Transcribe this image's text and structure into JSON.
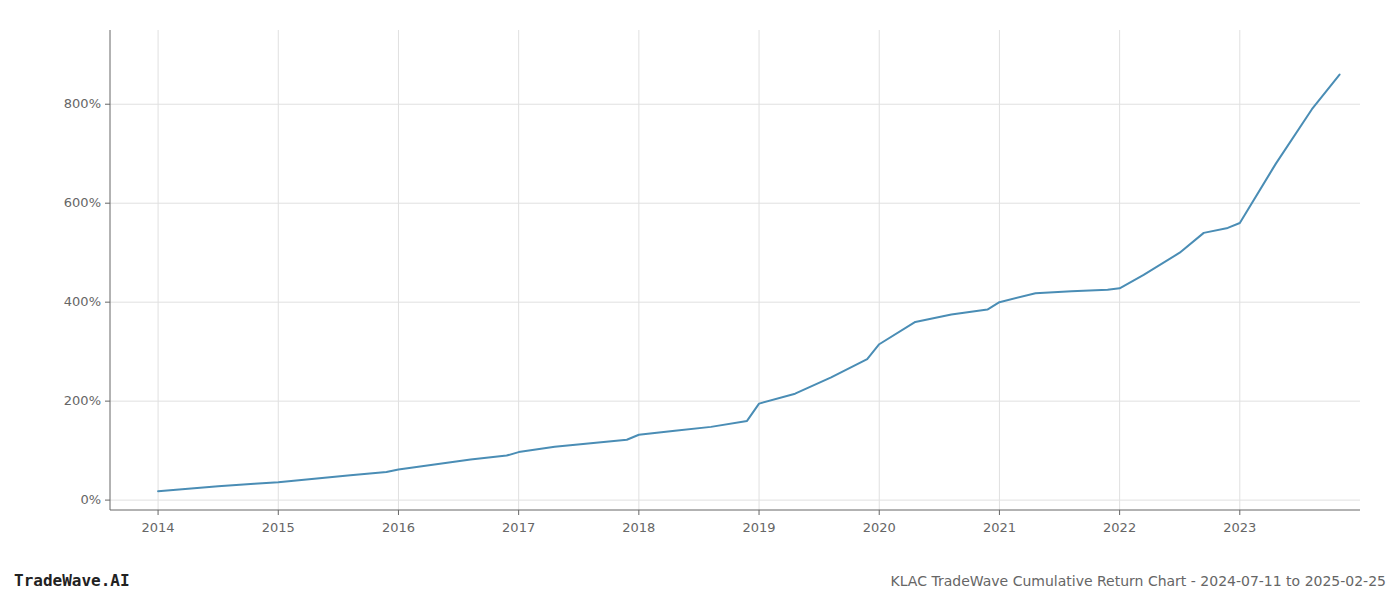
{
  "chart_data": {
    "type": "line",
    "title": "KLAC TradeWave Cumulative Return Chart - 2024-07-11 to 2025-02-25",
    "annotations": [
      "TradeWave.AI"
    ],
    "x": [
      2014.0,
      2014.2,
      2014.5,
      2014.8,
      2015.0,
      2015.3,
      2015.6,
      2015.9,
      2016.0,
      2016.3,
      2016.6,
      2016.9,
      2017.0,
      2017.3,
      2017.6,
      2017.9,
      2018.0,
      2018.3,
      2018.6,
      2018.9,
      2019.0,
      2019.3,
      2019.6,
      2019.9,
      2020.0,
      2020.3,
      2020.6,
      2020.9,
      2021.0,
      2021.3,
      2021.6,
      2021.9,
      2022.0,
      2022.2,
      2022.5,
      2022.7,
      2022.9,
      2023.0,
      2023.3,
      2023.6,
      2023.83
    ],
    "values": [
      18,
      22,
      28,
      33,
      36,
      43,
      50,
      57,
      62,
      72,
      82,
      90,
      97,
      108,
      115,
      122,
      132,
      140,
      148,
      160,
      195,
      215,
      248,
      285,
      315,
      360,
      375,
      385,
      400,
      418,
      422,
      425,
      428,
      455,
      500,
      540,
      550,
      560,
      680,
      790,
      860
    ],
    "color": "#4a8db5",
    "xlim": [
      2013.6,
      2024.0
    ],
    "xticks": [
      2014,
      2015,
      2016,
      2017,
      2018,
      2019,
      2020,
      2021,
      2022,
      2023
    ],
    "ylim": [
      -20,
      950
    ],
    "yticks": [
      {
        "value": 0,
        "label": "0%"
      },
      {
        "value": 200,
        "label": "200%"
      },
      {
        "value": 400,
        "label": "400%"
      },
      {
        "value": 600,
        "label": "600%"
      },
      {
        "value": 800,
        "label": "800%"
      }
    ],
    "grid": true
  }
}
